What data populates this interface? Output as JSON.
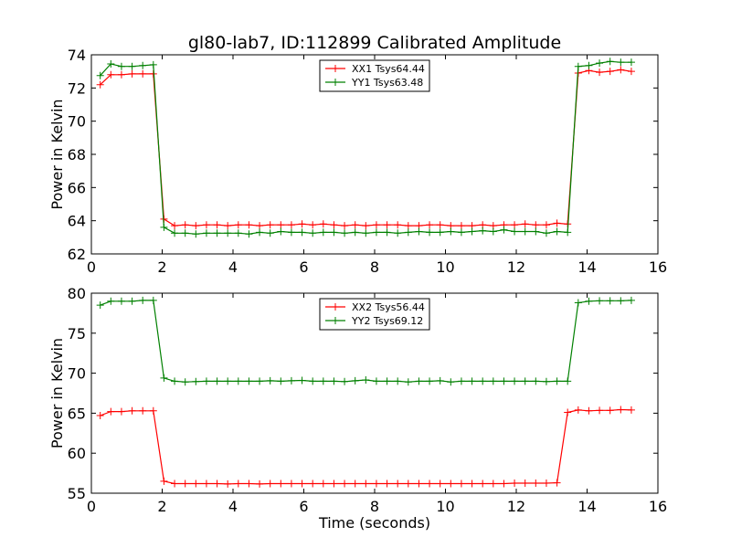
{
  "figure_title": "gl80-lab7, ID:112899 Calibrated Amplitude",
  "chart_data": [
    {
      "type": "line",
      "xlabel": "",
      "ylabel": "Power in Kelvin",
      "xlim": [
        0,
        16
      ],
      "ylim": [
        62,
        74
      ],
      "xticks": [
        0,
        2,
        4,
        6,
        8,
        10,
        12,
        14,
        16
      ],
      "yticks": [
        62,
        64,
        66,
        68,
        70,
        72,
        74
      ],
      "grid": false,
      "legend_position": "top-center",
      "x": [
        0.25,
        0.55,
        0.85,
        1.15,
        1.45,
        1.75,
        2.05,
        2.35,
        2.65,
        2.95,
        3.25,
        3.55,
        3.85,
        4.15,
        4.45,
        4.75,
        5.05,
        5.35,
        5.65,
        5.95,
        6.25,
        6.55,
        6.85,
        7.15,
        7.45,
        7.75,
        8.05,
        8.35,
        8.65,
        8.95,
        9.25,
        9.55,
        9.85,
        10.15,
        10.45,
        10.75,
        11.05,
        11.35,
        11.65,
        11.95,
        12.25,
        12.55,
        12.85,
        13.15,
        13.45,
        13.75,
        14.05,
        14.35,
        14.65,
        14.95,
        15.25
      ],
      "series": [
        {
          "name": "XX1 Tsys64.44",
          "color": "#ff0000",
          "values": [
            72.2,
            72.8,
            72.8,
            72.85,
            72.85,
            72.85,
            64.1,
            63.7,
            63.75,
            63.7,
            63.75,
            63.75,
            63.7,
            63.75,
            63.75,
            63.7,
            63.75,
            63.75,
            63.75,
            63.8,
            63.75,
            63.8,
            63.75,
            63.7,
            63.75,
            63.7,
            63.75,
            63.75,
            63.75,
            63.7,
            63.7,
            63.75,
            63.75,
            63.7,
            63.7,
            63.7,
            63.75,
            63.7,
            63.75,
            63.75,
            63.8,
            63.75,
            63.75,
            63.85,
            63.8,
            72.9,
            73.05,
            72.95,
            73.0,
            73.1,
            73.0
          ]
        },
        {
          "name": "YY1 Tsys63.48",
          "color": "#008000",
          "values": [
            72.75,
            73.45,
            73.3,
            73.3,
            73.35,
            73.4,
            63.6,
            63.25,
            63.25,
            63.2,
            63.25,
            63.25,
            63.25,
            63.25,
            63.2,
            63.3,
            63.25,
            63.35,
            63.3,
            63.3,
            63.25,
            63.3,
            63.3,
            63.25,
            63.3,
            63.25,
            63.3,
            63.3,
            63.25,
            63.3,
            63.35,
            63.3,
            63.3,
            63.35,
            63.3,
            63.35,
            63.4,
            63.35,
            63.45,
            63.35,
            63.35,
            63.35,
            63.25,
            63.35,
            63.3,
            73.3,
            73.35,
            73.5,
            73.6,
            73.55,
            73.55
          ]
        }
      ]
    },
    {
      "type": "line",
      "xlabel": "Time (seconds)",
      "ylabel": "Power in Kelvin",
      "xlim": [
        0,
        16
      ],
      "ylim": [
        55,
        80
      ],
      "xticks": [
        0,
        2,
        4,
        6,
        8,
        10,
        12,
        14,
        16
      ],
      "yticks": [
        55,
        60,
        65,
        70,
        75,
        80
      ],
      "grid": false,
      "legend_position": "top-center",
      "x": [
        0.25,
        0.55,
        0.85,
        1.15,
        1.45,
        1.75,
        2.05,
        2.35,
        2.65,
        2.95,
        3.25,
        3.55,
        3.85,
        4.15,
        4.45,
        4.75,
        5.05,
        5.35,
        5.65,
        5.95,
        6.25,
        6.55,
        6.85,
        7.15,
        7.45,
        7.75,
        8.05,
        8.35,
        8.65,
        8.95,
        9.25,
        9.55,
        9.85,
        10.15,
        10.45,
        10.75,
        11.05,
        11.35,
        11.65,
        11.95,
        12.25,
        12.55,
        12.85,
        13.15,
        13.45,
        13.75,
        14.05,
        14.35,
        14.65,
        14.95,
        15.25
      ],
      "series": [
        {
          "name": "XX2 Tsys56.44",
          "color": "#ff0000",
          "values": [
            64.7,
            65.2,
            65.2,
            65.3,
            65.3,
            65.3,
            56.5,
            56.2,
            56.2,
            56.2,
            56.2,
            56.2,
            56.15,
            56.2,
            56.2,
            56.15,
            56.2,
            56.2,
            56.2,
            56.2,
            56.2,
            56.2,
            56.2,
            56.2,
            56.2,
            56.2,
            56.2,
            56.2,
            56.2,
            56.2,
            56.2,
            56.2,
            56.2,
            56.2,
            56.2,
            56.2,
            56.2,
            56.2,
            56.2,
            56.25,
            56.25,
            56.25,
            56.25,
            56.3,
            65.1,
            65.4,
            65.3,
            65.35,
            65.35,
            65.45,
            65.4
          ]
        },
        {
          "name": "YY2 Tsys69.12",
          "color": "#008000",
          "values": [
            78.5,
            79.0,
            79.0,
            79.0,
            79.1,
            79.1,
            69.4,
            69.0,
            68.9,
            68.95,
            69.0,
            69.0,
            69.0,
            69.0,
            69.0,
            69.0,
            69.05,
            69.0,
            69.05,
            69.1,
            69.0,
            69.0,
            69.0,
            68.95,
            69.05,
            69.15,
            69.0,
            69.0,
            69.0,
            68.9,
            69.0,
            69.0,
            69.05,
            68.9,
            69.0,
            69.0,
            69.0,
            69.0,
            69.0,
            69.0,
            69.0,
            69.0,
            68.95,
            69.0,
            69.0,
            78.8,
            79.0,
            79.05,
            79.05,
            79.05,
            79.1
          ]
        }
      ]
    }
  ]
}
